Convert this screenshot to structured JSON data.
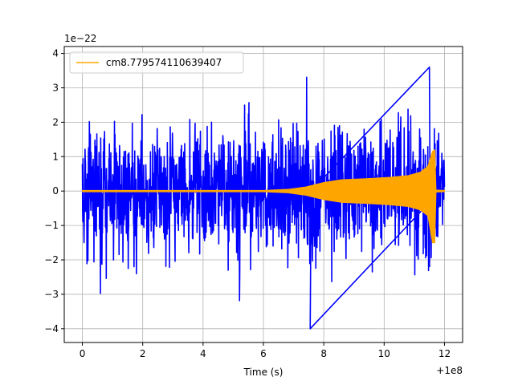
{
  "chart_data": {
    "type": "line",
    "title": "",
    "xlabel": "Time (s)",
    "ylabel": "",
    "x_offset_label": "+1e8",
    "y_scale_label": "1e−22",
    "xlim": [
      -0.6,
      12.6
    ],
    "ylim": [
      -4.4,
      4.2
    ],
    "x_ticks": [
      0,
      2,
      4,
      6,
      8,
      10,
      12
    ],
    "y_ticks": [
      -4,
      -3,
      -2,
      -1,
      0,
      1,
      2,
      3,
      4
    ],
    "x_tick_labels": [
      "0",
      "2",
      "4",
      "6",
      "8",
      "10",
      "12"
    ],
    "y_tick_labels": [
      "−4",
      "−3",
      "−2",
      "−1",
      "0",
      "1",
      "2",
      "3",
      "4"
    ],
    "grid": true,
    "legend_position": "top-left",
    "series": [
      {
        "name": "",
        "color": "#0000ff",
        "kind": "noise-strain",
        "x_range": [
          0,
          12
        ],
        "envelope_typical": [
          -2.0,
          2.0
        ],
        "min": -4.0,
        "max": 3.6
      },
      {
        "name": "cm8.779574110639407",
        "color": "#ffa500",
        "kind": "chirp-waveform",
        "x_range": [
          0,
          12
        ],
        "envelope": [
          [
            0,
            0.02
          ],
          [
            6.0,
            0.02
          ],
          [
            6.8,
            0.05
          ],
          [
            7.4,
            0.12
          ],
          [
            8.0,
            0.25
          ],
          [
            8.6,
            0.33
          ],
          [
            9.4,
            0.36
          ],
          [
            10.2,
            0.4
          ],
          [
            10.8,
            0.45
          ],
          [
            11.2,
            0.55
          ],
          [
            11.45,
            0.72
          ],
          [
            11.6,
            1.15
          ],
          [
            11.68,
            1.2
          ],
          [
            11.72,
            0.03
          ],
          [
            12.0,
            0.02
          ]
        ],
        "peak_min": -1.5,
        "peak_max": 1.2
      }
    ]
  }
}
